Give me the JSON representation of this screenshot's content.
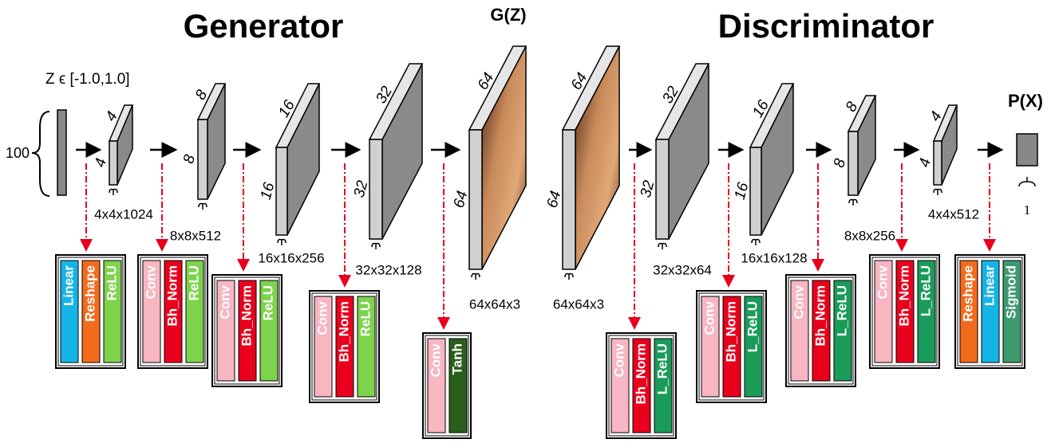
{
  "titles": {
    "generator": "Generator",
    "discriminator": "Discriminator"
  },
  "input": {
    "label": "Z ϵ [-1.0,1.0]",
    "size": "100"
  },
  "generated": "G(Z)",
  "output": {
    "label": "P(X)",
    "size": "1"
  },
  "volumes": [
    {
      "top": "4",
      "side": "4",
      "shape": "4x4x1024"
    },
    {
      "top": "8",
      "side": "8",
      "shape": "8x8x512"
    },
    {
      "top": "16",
      "side": "16",
      "shape": "16x16x256"
    },
    {
      "top": "32",
      "side": "32",
      "shape": "32x32x128"
    },
    {
      "top": "64",
      "side": "64",
      "shape": "64x64x3"
    },
    {
      "top": "64",
      "side": "64",
      "shape": "64x64x3"
    },
    {
      "top": "32",
      "side": "32",
      "shape": "32x32x64"
    },
    {
      "top": "16",
      "side": "16",
      "shape": "16x16x128"
    },
    {
      "top": "8",
      "side": "8",
      "shape": "8x8x256"
    },
    {
      "top": "4",
      "side": "4",
      "shape": "4x4x512"
    }
  ],
  "layer_groups": [
    {
      "layers": [
        {
          "name": "Linear",
          "color": "#14b4e6"
        },
        {
          "name": "Reshape",
          "color": "#f26b1d"
        },
        {
          "name": "ReLU",
          "color": "#7ed34d"
        }
      ]
    },
    {
      "layers": [
        {
          "name": "Conv",
          "color": "#f7b6c2"
        },
        {
          "name": "Bh_Norm",
          "color": "#e8001c"
        },
        {
          "name": "ReLU",
          "color": "#7ed34d"
        }
      ]
    },
    {
      "layers": [
        {
          "name": "Conv",
          "color": "#f7b6c2"
        },
        {
          "name": "Bh_Norm",
          "color": "#e8001c"
        },
        {
          "name": "ReLU",
          "color": "#7ed34d"
        }
      ]
    },
    {
      "layers": [
        {
          "name": "Conv",
          "color": "#f7b6c2"
        },
        {
          "name": "Bh_Norm",
          "color": "#e8001c"
        },
        {
          "name": "ReLU",
          "color": "#7ed34d"
        }
      ]
    },
    {
      "layers": [
        {
          "name": "Conv",
          "color": "#f7b6c2"
        },
        {
          "name": "Tanh",
          "color": "#2a5e1c"
        }
      ]
    },
    {
      "layers": [
        {
          "name": "Conv",
          "color": "#f7b6c2"
        },
        {
          "name": "Bh_Norm",
          "color": "#e8001c"
        },
        {
          "name": "L_ReLU",
          "color": "#1a9b5a"
        }
      ]
    },
    {
      "layers": [
        {
          "name": "Conv",
          "color": "#f7b6c2"
        },
        {
          "name": "Bh_Norm",
          "color": "#e8001c"
        },
        {
          "name": "L_ReLU",
          "color": "#1a9b5a"
        }
      ]
    },
    {
      "layers": [
        {
          "name": "Conv",
          "color": "#f7b6c2"
        },
        {
          "name": "Bh_Norm",
          "color": "#e8001c"
        },
        {
          "name": "L_ReLU",
          "color": "#1a9b5a"
        }
      ]
    },
    {
      "layers": [
        {
          "name": "Conv",
          "color": "#f7b6c2"
        },
        {
          "name": "Bh_Norm",
          "color": "#e8001c"
        },
        {
          "name": "L_ReLU",
          "color": "#1a9b5a"
        }
      ]
    },
    {
      "layers": [
        {
          "name": "Reshape",
          "color": "#f26b1d"
        },
        {
          "name": "Linear",
          "color": "#14b4e6"
        },
        {
          "name": "Sigmoid",
          "color": "#3c9a6e"
        }
      ]
    }
  ]
}
